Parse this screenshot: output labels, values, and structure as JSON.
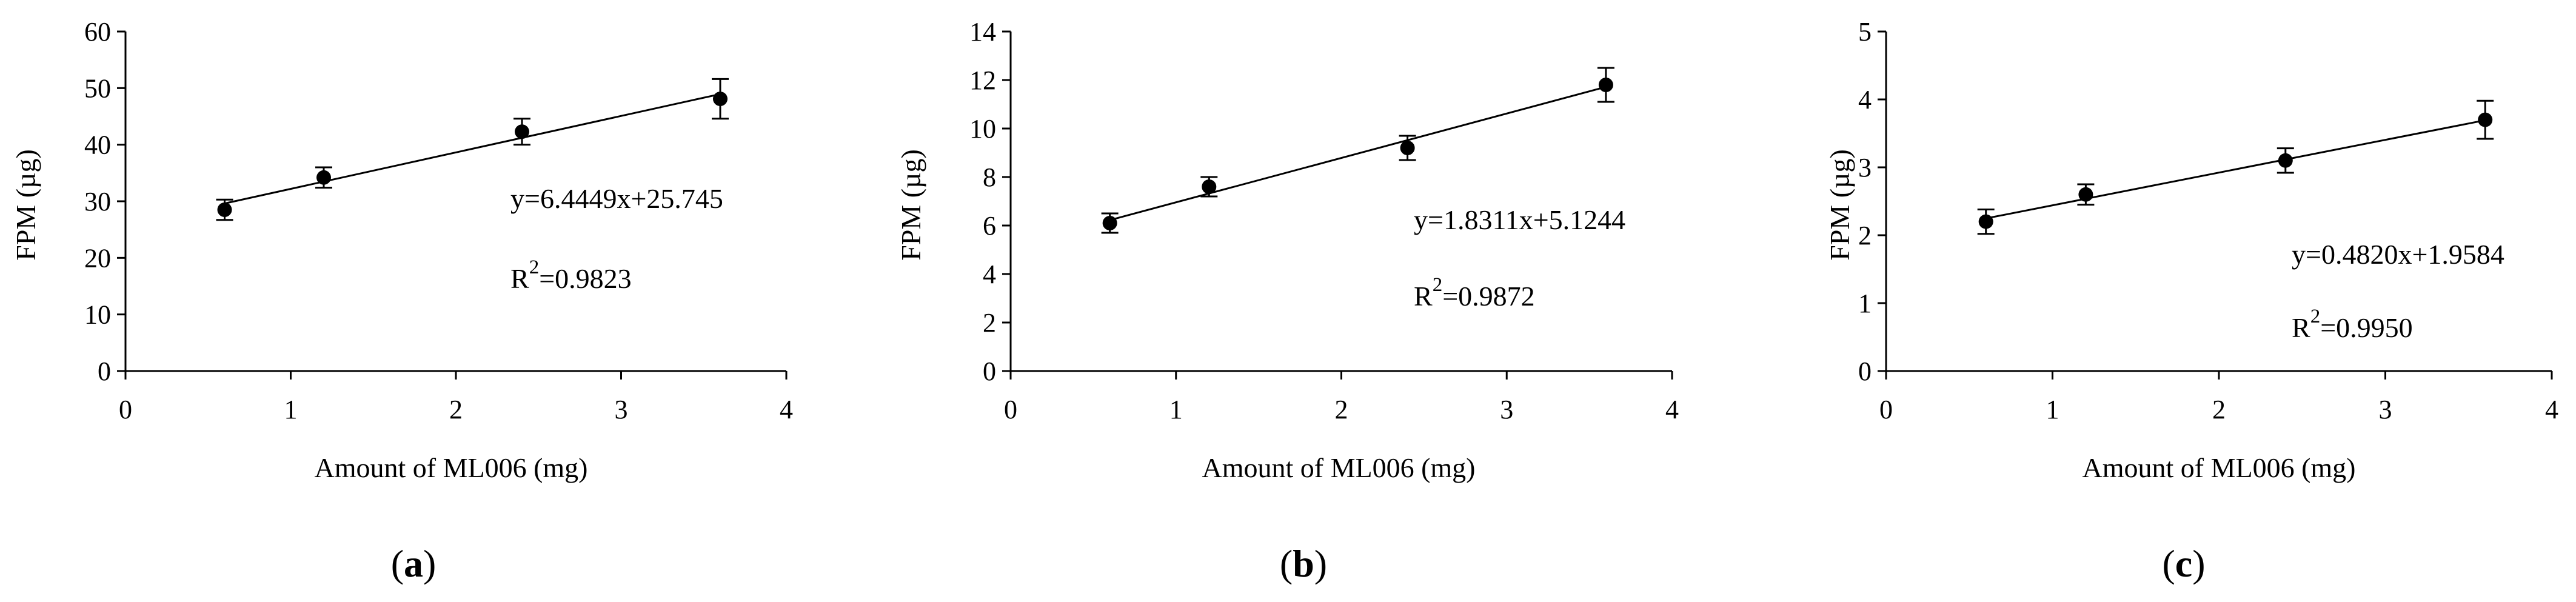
{
  "figure": {
    "colors": {
      "ink": "#000000",
      "background": "#ffffff"
    }
  },
  "chart_data": [
    {
      "type": "scatter",
      "panel_label": {
        "open": "(",
        "letter": "a",
        "close": ")"
      },
      "xlabel": "Amount of ML006 (mg)",
      "ylabel": "FPM (µg)",
      "xlim": [
        0,
        4
      ],
      "ylim": [
        0,
        60
      ],
      "xticks": [
        0,
        1,
        2,
        3,
        4
      ],
      "xtick_labels": [
        "0",
        "1",
        "2",
        "3",
        "4"
      ],
      "yticks": [
        0,
        10,
        20,
        30,
        40,
        50,
        60
      ],
      "ytick_labels": [
        "0",
        "10",
        "20",
        "30",
        "40",
        "50",
        "60"
      ],
      "series": [
        {
          "name": "FPM",
          "x": [
            0.6,
            1.2,
            2.4,
            3.6
          ],
          "y": [
            28.5,
            34.2,
            42.3,
            48.1
          ],
          "err": [
            1.8,
            1.8,
            2.3,
            3.5
          ]
        }
      ],
      "trendline": {
        "slope": 6.4449,
        "intercept": 25.745,
        "x_range": [
          0.6,
          3.6
        ]
      },
      "equation": "y=6.4449x+25.745",
      "r2": {
        "prefix": "R",
        "sup": "2",
        "value": "=0.9823"
      }
    },
    {
      "type": "scatter",
      "panel_label": {
        "open": "(",
        "letter": "b",
        "close": ")"
      },
      "xlabel": "Amount of ML006 (mg)",
      "ylabel": "FPM (µg)",
      "xlim": [
        0,
        4
      ],
      "ylim": [
        0,
        14
      ],
      "xticks": [
        0,
        1,
        2,
        3,
        4
      ],
      "xtick_labels": [
        "0",
        "1",
        "2",
        "3",
        "4"
      ],
      "yticks": [
        0,
        2,
        4,
        6,
        8,
        10,
        12,
        14
      ],
      "ytick_labels": [
        "0",
        "2",
        "4",
        "6",
        "8",
        "10",
        "12",
        "14"
      ],
      "series": [
        {
          "name": "FPM",
          "x": [
            0.6,
            1.2,
            2.4,
            3.6
          ],
          "y": [
            6.1,
            7.6,
            9.2,
            11.8
          ],
          "err": [
            0.4,
            0.4,
            0.5,
            0.7
          ]
        }
      ],
      "trendline": {
        "slope": 1.8311,
        "intercept": 5.1244,
        "x_range": [
          0.6,
          3.6
        ]
      },
      "equation": "y=1.8311x+5.1244",
      "r2": {
        "prefix": "R",
        "sup": "2",
        "value": "=0.9872"
      }
    },
    {
      "type": "scatter",
      "panel_label": {
        "open": "(",
        "letter": "c",
        "close": ")"
      },
      "xlabel": "Amount of ML006 (mg)",
      "ylabel": "FPM (µg)",
      "xlim": [
        0,
        4
      ],
      "ylim": [
        0,
        5
      ],
      "xticks": [
        0,
        1,
        2,
        3,
        4
      ],
      "xtick_labels": [
        "0",
        "1",
        "2",
        "3",
        "4"
      ],
      "yticks": [
        0,
        1,
        2,
        3,
        4,
        5
      ],
      "ytick_labels": [
        "0",
        "1",
        "2",
        "3",
        "4",
        "5"
      ],
      "series": [
        {
          "name": "FPM",
          "x": [
            0.6,
            1.2,
            2.4,
            3.6
          ],
          "y": [
            2.2,
            2.6,
            3.1,
            3.7
          ],
          "err": [
            0.18,
            0.15,
            0.18,
            0.28
          ]
        }
      ],
      "trendline": {
        "slope": 0.482,
        "intercept": 1.9584,
        "x_range": [
          0.6,
          3.6
        ]
      },
      "equation": "y=0.4820x+1.9584",
      "r2": {
        "prefix": "R",
        "sup": "2",
        "value": "=0.9950"
      }
    }
  ]
}
